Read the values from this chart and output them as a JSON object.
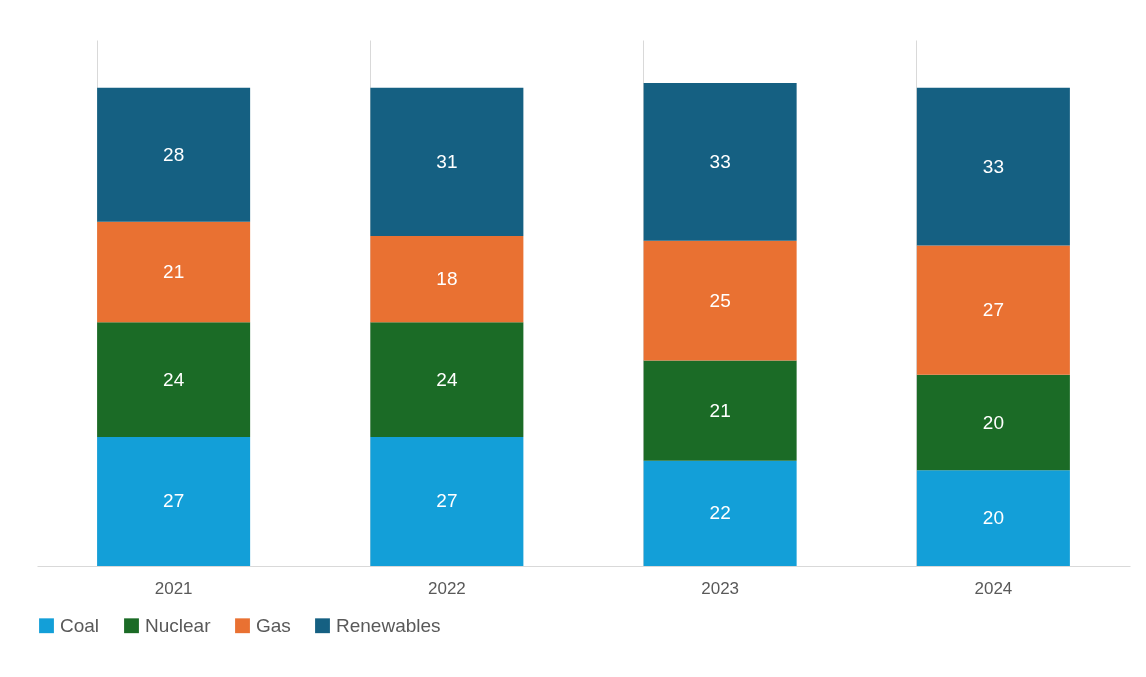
{
  "chart_data": {
    "type": "bar",
    "stacked": true,
    "categories": [
      "2021",
      "2022",
      "2023",
      "2024"
    ],
    "series": [
      {
        "name": "Coal",
        "color": "#139fd8",
        "values": [
          27,
          27,
          22,
          20
        ]
      },
      {
        "name": "Nuclear",
        "color": "#1b6b26",
        "values": [
          24,
          24,
          21,
          20
        ]
      },
      {
        "name": "Gas",
        "color": "#e97132",
        "values": [
          21,
          18,
          25,
          27
        ]
      },
      {
        "name": "Renewables",
        "color": "#156082",
        "values": [
          28,
          31,
          33,
          33
        ]
      }
    ],
    "data_labels": true,
    "grid": "x",
    "legend": "bottom",
    "tick_labels": "x"
  }
}
